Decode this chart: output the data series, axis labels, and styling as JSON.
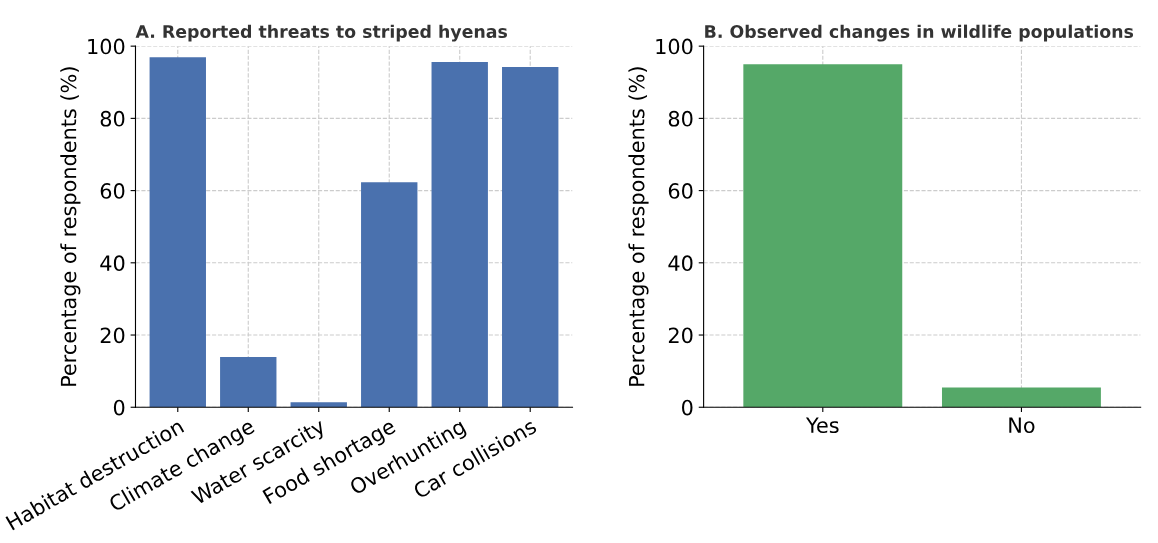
{
  "chart_data": [
    {
      "type": "bar",
      "title": "A. Reported threats to striped hyenas",
      "ylabel": "Percentage of respondents (%)",
      "categories": [
        "Habitat destruction",
        "Climate change",
        "Water scarcity",
        "Food shortage",
        "Overhunting",
        "Car collisions"
      ],
      "values": [
        96.9,
        13.9,
        1.4,
        62.3,
        95.6,
        94.2
      ],
      "color": "#4a71ae",
      "ylim": [
        0,
        100
      ],
      "yticks": [
        0,
        20,
        40,
        60,
        80,
        100
      ],
      "grid": true
    },
    {
      "type": "bar",
      "title": "B. Observed changes in wildlife populations",
      "ylabel": "Percentage of respondents (%)",
      "categories": [
        "Yes",
        "No"
      ],
      "values": [
        95.0,
        5.5
      ],
      "color": "#55a868",
      "ylim": [
        0,
        100
      ],
      "yticks": [
        0,
        20,
        40,
        60,
        80,
        100
      ],
      "grid": true
    }
  ]
}
